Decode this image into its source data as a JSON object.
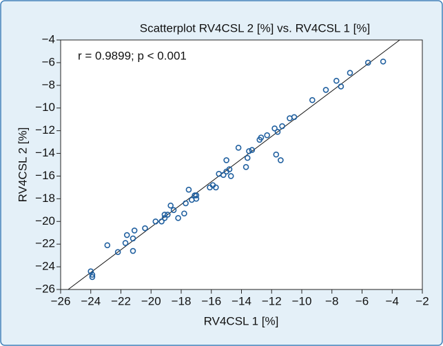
{
  "chart_data": {
    "type": "scatter",
    "title": "Scatterplot RV4CSL 2 [%] vs. RV4CSL 1 [%]",
    "annotation": "r = 0.9899; p < 0.001",
    "x_label": "RV4CSL 1 [%]",
    "y_label": "RV4CSL 2 [%]",
    "color": "#1f5f9f",
    "x": [
      -24.0,
      -23.9,
      -23.9,
      -22.9,
      -22.2,
      -21.7,
      -21.6,
      -21.2,
      -21.1,
      -21.2,
      -20.4,
      -19.7,
      -19.3,
      -19.1,
      -19.1,
      -18.9,
      -18.7,
      -18.5,
      -18.2,
      -17.8,
      -17.7,
      -17.5,
      -17.3,
      -17.1,
      -17.0,
      -17.0,
      -16.1,
      -15.9,
      -15.7,
      -15.5,
      -15.2,
      -15.0,
      -15.0,
      -14.8,
      -14.7,
      -14.2,
      -13.7,
      -13.6,
      -13.5,
      -13.3,
      -12.8,
      -12.7,
      -12.3,
      -11.8,
      -11.6,
      -11.3,
      -11.7,
      -11.4,
      -10.8,
      -10.5,
      -9.3,
      -8.4,
      -7.7,
      -7.4,
      -6.8,
      -5.6,
      -4.6
    ],
    "values": [
      -24.4,
      -24.7,
      -24.9,
      -22.1,
      -22.7,
      -21.9,
      -21.2,
      -21.5,
      -20.8,
      -22.6,
      -20.6,
      -20.0,
      -20.0,
      -19.4,
      -19.7,
      -19.4,
      -18.6,
      -19.0,
      -19.7,
      -19.3,
      -18.4,
      -17.2,
      -18.1,
      -17.7,
      -17.7,
      -18.0,
      -17.0,
      -16.8,
      -17.0,
      -15.8,
      -15.9,
      -14.6,
      -15.6,
      -15.4,
      -16.0,
      -13.5,
      -15.2,
      -14.4,
      -13.8,
      -13.7,
      -12.8,
      -12.6,
      -12.4,
      -11.8,
      -12.1,
      -11.6,
      -14.1,
      -14.6,
      -10.9,
      -10.8,
      -9.3,
      -8.4,
      -7.6,
      -8.1,
      -6.9,
      -6.0,
      -5.9
    ],
    "fit_line": {
      "x": [
        -25.5,
        -3.5
      ],
      "y": [
        -26,
        -4
      ]
    },
    "xlim": [
      -26,
      -2
    ],
    "ylim": [
      -26,
      -4
    ],
    "xticks": [
      {
        "value": -26,
        "label": "−26"
      },
      {
        "value": -24,
        "label": "−24"
      },
      {
        "value": -22,
        "label": "−22"
      },
      {
        "value": -20,
        "label": "−20"
      },
      {
        "value": -18,
        "label": "−18"
      },
      {
        "value": -16,
        "label": "−16"
      },
      {
        "value": -14,
        "label": "−14"
      },
      {
        "value": -12,
        "label": "−12"
      },
      {
        "value": -10,
        "label": "−10"
      },
      {
        "value": -8,
        "label": "−8"
      },
      {
        "value": -6,
        "label": "−6"
      },
      {
        "value": -4,
        "label": "−4"
      },
      {
        "value": -2,
        "label": "−2"
      }
    ],
    "yticks": [
      {
        "value": -26,
        "label": "−26"
      },
      {
        "value": -24,
        "label": "−24"
      },
      {
        "value": -22,
        "label": "−22"
      },
      {
        "value": -20,
        "label": "−20"
      },
      {
        "value": -18,
        "label": "−18"
      },
      {
        "value": -16,
        "label": "−16"
      },
      {
        "value": -14,
        "label": "−14"
      },
      {
        "value": -12,
        "label": "−12"
      },
      {
        "value": -10,
        "label": "−10"
      },
      {
        "value": -8,
        "label": "−8"
      },
      {
        "value": -6,
        "label": "−6"
      },
      {
        "value": -4,
        "label": "−4"
      }
    ]
  }
}
